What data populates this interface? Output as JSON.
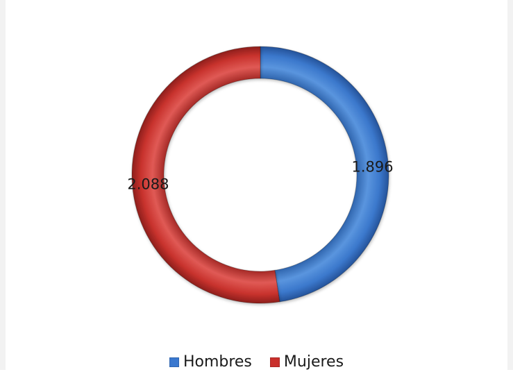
{
  "chart_data": {
    "type": "donut",
    "title": "",
    "series": [
      {
        "name": "Hombres",
        "value": 1896,
        "label": "1.896",
        "color": "#3a78cf"
      },
      {
        "name": "Mujeres",
        "value": 2088,
        "label": "2.088",
        "color": "#c9302c"
      }
    ],
    "legend_position": "bottom"
  }
}
